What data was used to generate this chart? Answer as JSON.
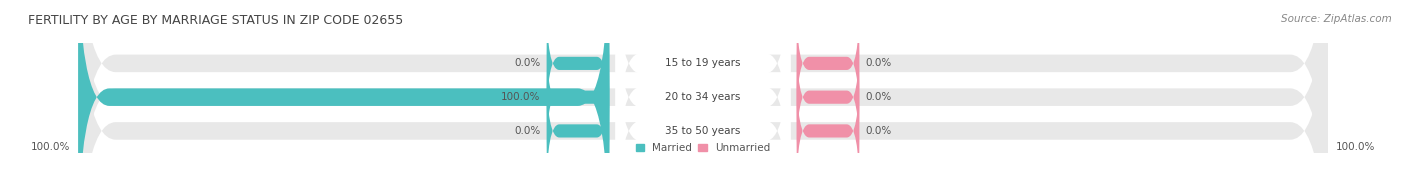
{
  "title": "FERTILITY BY AGE BY MARRIAGE STATUS IN ZIP CODE 02655",
  "source": "Source: ZipAtlas.com",
  "categories": [
    "15 to 19 years",
    "20 to 34 years",
    "35 to 50 years"
  ],
  "married": [
    0.0,
    100.0,
    0.0
  ],
  "unmarried": [
    0.0,
    0.0,
    0.0
  ],
  "married_color": "#4bbfbf",
  "unmarried_color": "#f090a8",
  "bar_bg_color": "#e8e8e8",
  "center_bg_color": "#ffffff",
  "max_val": 100.0,
  "fig_width": 14.06,
  "fig_height": 1.96,
  "background_color": "#ffffff",
  "title_fontsize": 9,
  "label_fontsize": 7.5,
  "source_fontsize": 7.5,
  "axis_label_left": "100.0%",
  "axis_label_right": "100.0%",
  "legend_married": "Married",
  "legend_unmarried": "Unmarried"
}
